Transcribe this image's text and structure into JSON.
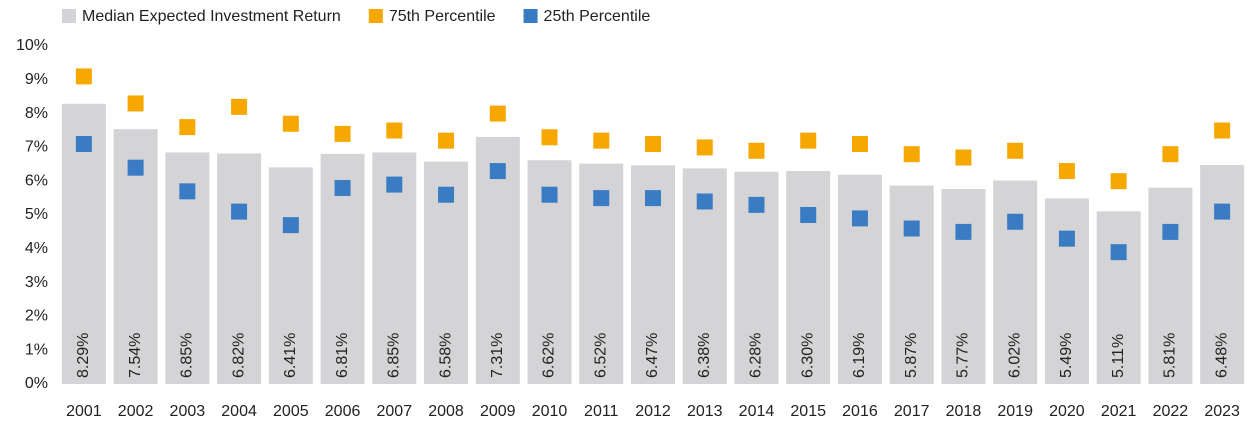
{
  "chart_data": {
    "type": "bar",
    "categories": [
      "2001",
      "2002",
      "2003",
      "2004",
      "2005",
      "2006",
      "2007",
      "2008",
      "2009",
      "2010",
      "2011",
      "2012",
      "2013",
      "2014",
      "2015",
      "2016",
      "2017",
      "2018",
      "2019",
      "2020",
      "2021",
      "2022",
      "2023"
    ],
    "series": [
      {
        "name": "Median Expected Investment Return",
        "type": "bar",
        "color": "#d4d4d6",
        "values": [
          8.29,
          7.54,
          6.85,
          6.82,
          6.41,
          6.81,
          6.85,
          6.58,
          7.31,
          6.62,
          6.52,
          6.47,
          6.38,
          6.28,
          6.3,
          6.19,
          5.87,
          5.77,
          6.02,
          5.49,
          5.11,
          5.81,
          6.48
        ],
        "value_labels": [
          "8.29%",
          "7.54%",
          "6.85%",
          "6.82%",
          "6.41%",
          "6.81%",
          "6.85%",
          "6.58%",
          "7.31%",
          "6.62%",
          "6.52%",
          "6.47%",
          "6.38%",
          "6.28%",
          "6.30%",
          "6.19%",
          "5.87%",
          "5.77%",
          "6.02%",
          "5.49%",
          "5.11%",
          "5.81%",
          "6.48%"
        ]
      },
      {
        "name": "75th Percentile",
        "type": "scatter",
        "color": "#f6a800",
        "values": [
          9.1,
          8.3,
          7.6,
          8.2,
          7.7,
          7.4,
          7.5,
          7.2,
          8.0,
          7.3,
          7.2,
          7.1,
          7.0,
          6.9,
          7.2,
          7.1,
          6.8,
          6.7,
          6.9,
          6.3,
          6.0,
          6.8,
          7.5
        ]
      },
      {
        "name": "25th Percentile",
        "type": "scatter",
        "color": "#3a7cc4",
        "values": [
          7.1,
          6.4,
          5.7,
          5.1,
          4.7,
          5.8,
          5.9,
          5.6,
          6.3,
          5.6,
          5.5,
          5.5,
          5.4,
          5.3,
          5.0,
          4.9,
          4.6,
          4.5,
          4.8,
          4.3,
          3.9,
          4.5,
          5.1
        ]
      }
    ],
    "ylim": [
      0,
      10
    ],
    "yticks": [
      {
        "value": 0,
        "label": "0%"
      },
      {
        "value": 1,
        "label": "1%"
      },
      {
        "value": 2,
        "label": "2%"
      },
      {
        "value": 3,
        "label": "3%"
      },
      {
        "value": 4,
        "label": "4%"
      },
      {
        "value": 5,
        "label": "5%"
      },
      {
        "value": 6,
        "label": "6%"
      },
      {
        "value": 7,
        "label": "7%"
      },
      {
        "value": 8,
        "label": "8%"
      },
      {
        "value": 9,
        "label": "9%"
      },
      {
        "value": 10,
        "label": "10%"
      }
    ],
    "legend": "top-left"
  }
}
